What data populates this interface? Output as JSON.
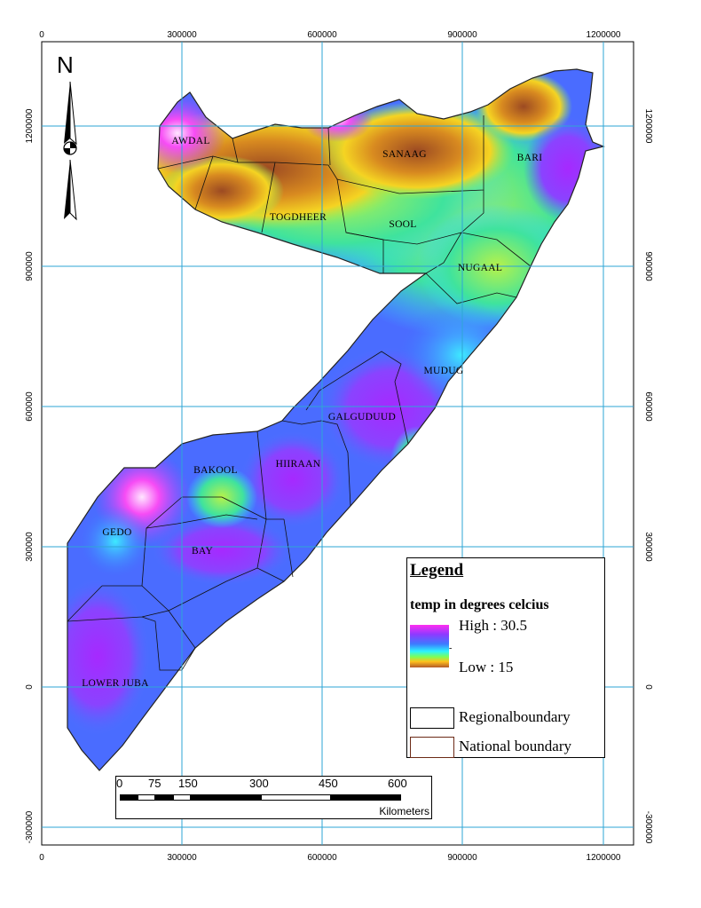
{
  "map": {
    "x_ticks": [
      "0",
      "300000",
      "600000",
      "900000",
      "1200000"
    ],
    "y_ticks_left": [
      "1200000",
      "900000",
      "600000",
      "300000",
      "0",
      "-300000"
    ],
    "y_ticks_right": [
      "1200000",
      "900000",
      "600000",
      "300000",
      "0",
      "-300000"
    ],
    "regions": [
      {
        "id": "awdal",
        "label": "AWDAL"
      },
      {
        "id": "sanaag",
        "label": "SANAAG"
      },
      {
        "id": "bari",
        "label": "BARI"
      },
      {
        "id": "togdheer",
        "label": "TOGDHEER"
      },
      {
        "id": "sool",
        "label": "SOOL"
      },
      {
        "id": "nugaal",
        "label": "NUGAAL"
      },
      {
        "id": "mudug",
        "label": "MUDUG"
      },
      {
        "id": "galguduud",
        "label": "GALGUDUUD"
      },
      {
        "id": "bakool",
        "label": "BAKOOL"
      },
      {
        "id": "hiiraan",
        "label": "HIIRAAN"
      },
      {
        "id": "gedo",
        "label": "GEDO"
      },
      {
        "id": "bay",
        "label": "BAY"
      },
      {
        "id": "lower-juba",
        "label": "LOWER JUBA"
      }
    ]
  },
  "north_arrow": {
    "label": "N"
  },
  "legend": {
    "title": "Legend",
    "subtitle": "temp in degrees celcius",
    "high": "High : 30.5",
    "low": "Low : 15",
    "regional": "Regionalboundary",
    "national": "National boundary",
    "ramp_colors": [
      "#ff2df0",
      "#8f39ff",
      "#3d7bff",
      "#2bf2ff",
      "#7dff56",
      "#ffc21d",
      "#b45a29"
    ]
  },
  "scale_bar": {
    "labels": [
      "0",
      "75",
      "150",
      "300",
      "450",
      "600"
    ],
    "unit": "Kilometers"
  }
}
